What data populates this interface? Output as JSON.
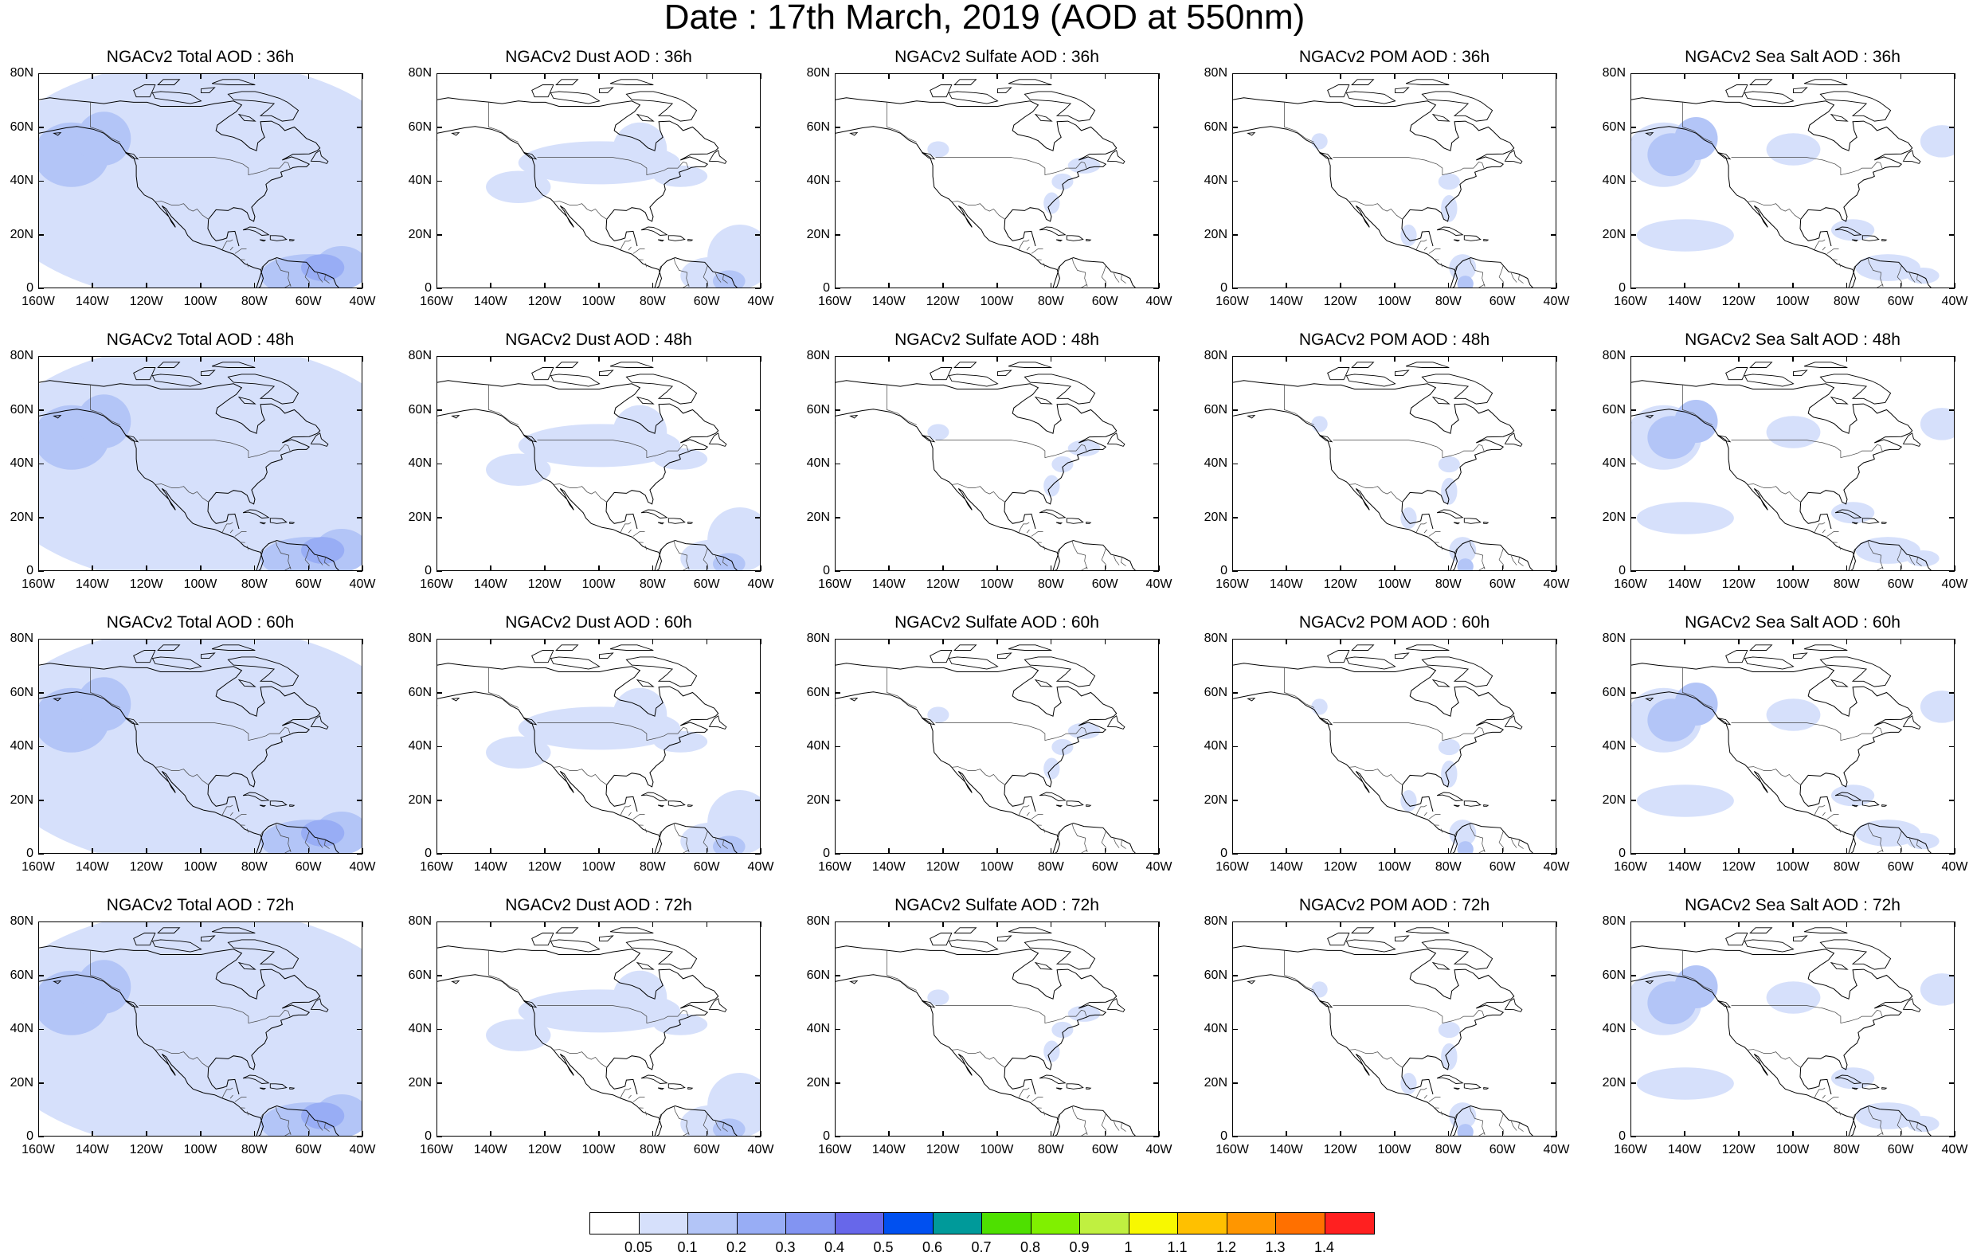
{
  "title": "Date : 17th March, 2019 (AOD at 550nm)",
  "panels": [
    {
      "title": "NGACv2 Total AOD : 36h",
      "species": "total"
    },
    {
      "title": "NGACv2 Dust AOD : 36h",
      "species": "dust"
    },
    {
      "title": "NGACv2 Sulfate AOD : 36h",
      "species": "sulfate"
    },
    {
      "title": "NGACv2 POM AOD : 36h",
      "species": "pom"
    },
    {
      "title": "NGACv2 Sea Salt AOD : 36h",
      "species": "seasalt"
    },
    {
      "title": "NGACv2 Total AOD : 48h",
      "species": "total"
    },
    {
      "title": "NGACv2 Dust AOD : 48h",
      "species": "dust"
    },
    {
      "title": "NGACv2 Sulfate AOD : 48h",
      "species": "sulfate"
    },
    {
      "title": "NGACv2 POM AOD : 48h",
      "species": "pom"
    },
    {
      "title": "NGACv2 Sea Salt AOD : 48h",
      "species": "seasalt"
    },
    {
      "title": "NGACv2 Total AOD : 60h",
      "species": "total"
    },
    {
      "title": "NGACv2 Dust AOD : 60h",
      "species": "dust"
    },
    {
      "title": "NGACv2 Sulfate AOD : 60h",
      "species": "sulfate"
    },
    {
      "title": "NGACv2 POM AOD : 60h",
      "species": "pom"
    },
    {
      "title": "NGACv2 Sea Salt AOD : 60h",
      "species": "seasalt"
    },
    {
      "title": "NGACv2 Total AOD : 72h",
      "species": "total"
    },
    {
      "title": "NGACv2 Dust AOD : 72h",
      "species": "dust"
    },
    {
      "title": "NGACv2 Sulfate AOD : 72h",
      "species": "sulfate"
    },
    {
      "title": "NGACv2 POM AOD : 72h",
      "species": "pom"
    },
    {
      "title": "NGACv2 Sea Salt  AOD : 72h",
      "species": "seasalt"
    }
  ],
  "lat_labels": [
    "80N",
    "60N",
    "40N",
    "20N",
    "0"
  ],
  "lon_labels": [
    "160W",
    "140W",
    "120W",
    "100W",
    "80W",
    "60W",
    "40W"
  ],
  "colorbar": {
    "colors": [
      "#ffffff",
      "#d6e0fb",
      "#b3c5f7",
      "#98adf5",
      "#8294f2",
      "#6767ea",
      "#0050f0",
      "#009a9a",
      "#4ee000",
      "#80f000",
      "#c0f040",
      "#f8f800",
      "#ffc000",
      "#ff9600",
      "#ff7000",
      "#ff2020"
    ],
    "labels": [
      "0.05",
      "0.1",
      "0.2",
      "0.3",
      "0.4",
      "0.5",
      "0.6",
      "0.7",
      "0.8",
      "0.9",
      "1",
      "1.1",
      "1.2",
      "1.3",
      "1.4"
    ]
  }
}
